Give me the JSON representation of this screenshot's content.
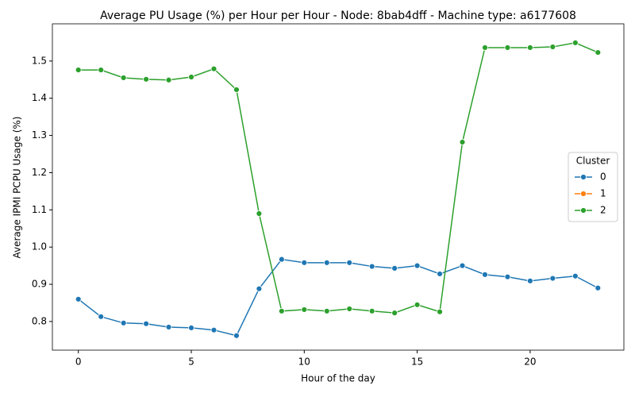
{
  "chart_data": {
    "type": "line",
    "title": "Average PU Usage (%) per Hour per Hour - Node: 8bab4dff - Machine type: a6177608",
    "xlabel": "Hour of the day",
    "ylabel": "Average IPMI PCPU Usage (%)",
    "x": [
      0,
      1,
      2,
      3,
      4,
      5,
      6,
      7,
      8,
      9,
      10,
      11,
      12,
      13,
      14,
      15,
      16,
      17,
      18,
      19,
      20,
      21,
      22,
      23
    ],
    "series": [
      {
        "name": "0",
        "color": "#1f77b4",
        "values": [
          0.86,
          0.813,
          0.796,
          0.794,
          0.785,
          0.783,
          0.777,
          0.762,
          0.888,
          0.967,
          0.958,
          0.958,
          0.958,
          0.948,
          0.943,
          0.95,
          0.928,
          0.95,
          0.926,
          0.92,
          0.909,
          0.916,
          0.922,
          0.89
        ]
      },
      {
        "name": "1",
        "color": "#ff7f0e",
        "values": [
          null,
          null,
          null,
          null,
          null,
          null,
          null,
          null,
          null,
          null,
          null,
          null,
          null,
          null,
          null,
          null,
          null,
          null,
          null,
          null,
          null,
          null,
          null,
          null
        ]
      },
      {
        "name": "2",
        "color": "#2ca02c",
        "values": [
          1.476,
          1.476,
          1.455,
          1.451,
          1.449,
          1.457,
          1.479,
          1.423,
          1.09,
          0.828,
          0.832,
          0.828,
          0.834,
          0.828,
          0.823,
          0.845,
          0.826,
          1.282,
          1.536,
          1.536,
          1.536,
          1.538,
          1.549,
          1.523
        ]
      }
    ],
    "xlim": [
      -1.15,
      24.15
    ],
    "xticks": [
      0,
      5,
      10,
      15,
      20
    ],
    "ylim": [
      0.723,
      1.6
    ],
    "yticks": [
      0.8,
      0.9,
      {
        "value": 1,
        "label": "1.0"
      },
      1.1,
      1.2,
      1.3,
      1.4,
      1.5
    ],
    "grid": false,
    "legend_title": "Cluster",
    "legend_position": "center right"
  }
}
